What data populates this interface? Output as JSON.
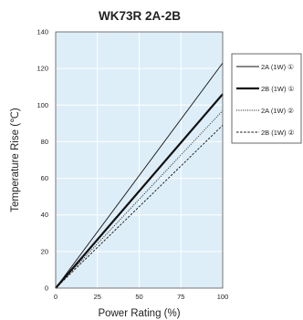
{
  "chart_data": {
    "type": "line",
    "title": "WK73R 2A-2B",
    "xlabel": "Power Rating (%)",
    "ylabel": "Temperature Rise (℃)",
    "xlim": [
      0,
      100
    ],
    "ylim": [
      0,
      140
    ],
    "x_ticks": [
      "0",
      "25",
      "50",
      "75",
      "100"
    ],
    "y_ticks": [
      "0",
      "20",
      "40",
      "60",
      "80",
      "100",
      "120",
      "140"
    ],
    "grid": true,
    "legend_position": "right",
    "plot_background": "#deeef8",
    "series": [
      {
        "name": "2A (1W) ①",
        "style": "thin-solid",
        "x": [
          0,
          100
        ],
        "y": [
          0,
          123
        ]
      },
      {
        "name": "2B (1W) ①",
        "style": "thick-solid",
        "x": [
          0,
          100
        ],
        "y": [
          0,
          106
        ]
      },
      {
        "name": "2A (1W) ②",
        "style": "dotted",
        "x": [
          0,
          100
        ],
        "y": [
          0,
          97
        ]
      },
      {
        "name": "2B (1W) ②",
        "style": "dashed",
        "x": [
          0,
          100
        ],
        "y": [
          0,
          89
        ]
      }
    ]
  }
}
